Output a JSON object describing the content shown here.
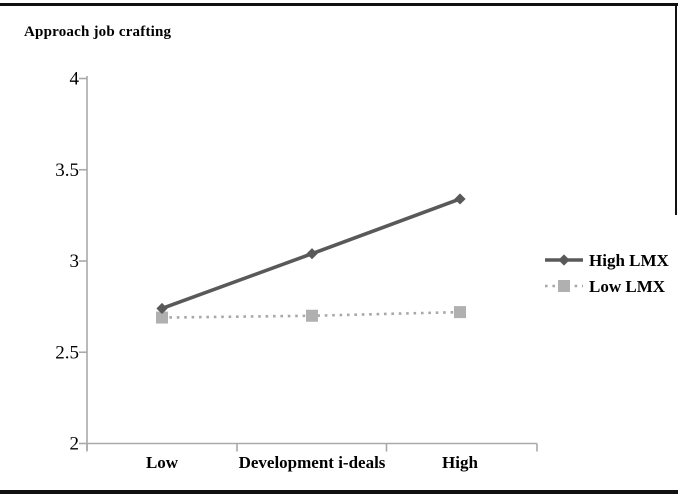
{
  "figure": {
    "title": "Approach job crafting"
  },
  "chart_data": {
    "type": "line",
    "title": "Approach job crafting",
    "categories": [
      "Low",
      "Development i-deals",
      "High"
    ],
    "series": [
      {
        "name": "High LMX",
        "values": [
          2.74,
          3.04,
          3.34
        ],
        "line_style": "solid",
        "line_color": "#595959",
        "marker": "diamond",
        "marker_color": "#595959"
      },
      {
        "name": "Low LMX",
        "values": [
          2.69,
          2.7,
          2.72
        ],
        "line_style": "dotted",
        "line_color": "#a8a8a8",
        "marker": "square",
        "marker_color": "#b0b0b0"
      }
    ],
    "ylim": [
      2,
      4
    ],
    "y_tick_values": [
      2,
      2.5,
      3,
      3.5,
      4
    ],
    "y_tick_labels": [
      "2",
      "2.5",
      "3",
      "3.5",
      "4"
    ],
    "xlabel": "",
    "ylabel": "",
    "grid": false,
    "legend_position": "right",
    "axis_color": "#a9a9a9",
    "text_color": "#000000",
    "background_color": "#ffffff"
  }
}
